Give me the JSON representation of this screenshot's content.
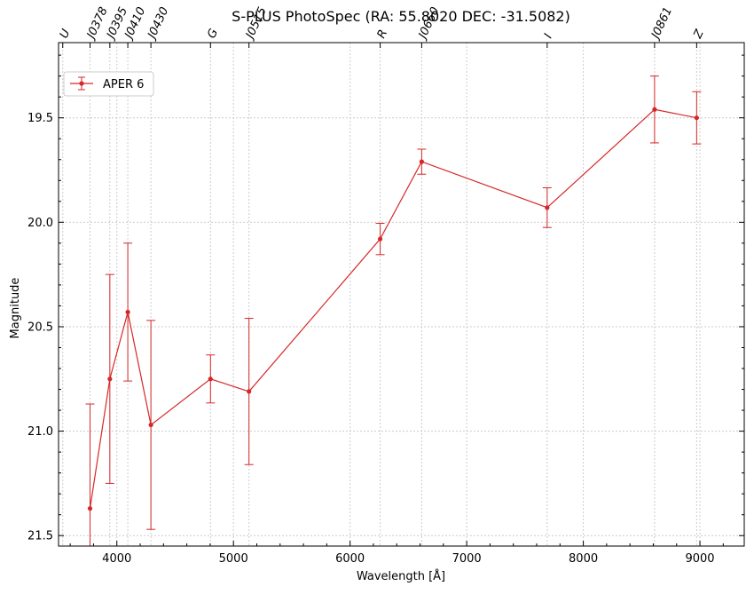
{
  "chart_data": {
    "type": "line",
    "title": "S-PLUS PhotoSpec (RA: 55.8020 DEC: -31.5082)",
    "xlabel": "Wavelength [Å]",
    "ylabel": "Magnitude",
    "xlim": [
      3500,
      9380
    ],
    "ylim": [
      21.55,
      19.14
    ],
    "y_inverted": true,
    "grid": true,
    "x_ticks": [
      4000,
      5000,
      6000,
      7000,
      8000,
      9000
    ],
    "y_ticks": [
      19.5,
      20.0,
      20.5,
      21.0,
      21.5
    ],
    "x_tick_labels": [
      "4000",
      "5000",
      "6000",
      "7000",
      "8000",
      "9000"
    ],
    "y_tick_labels": [
      "19.5",
      "20.0",
      "20.5",
      "21.0",
      "21.5"
    ],
    "legend_position": "top-left",
    "color": "#d62728",
    "series": [
      {
        "name": "APER 6",
        "points": [
          {
            "x": 3770,
            "y": 21.37,
            "err": 0.5
          },
          {
            "x": 3940,
            "y": 20.75,
            "err": 0.5
          },
          {
            "x": 4094,
            "y": 20.43,
            "err": 0.33
          },
          {
            "x": 4292,
            "y": 20.97,
            "err": 0.5
          },
          {
            "x": 4803,
            "y": 20.75,
            "err": 0.115
          },
          {
            "x": 5133,
            "y": 20.81,
            "err": 0.35
          },
          {
            "x": 6258,
            "y": 20.08,
            "err": 0.075
          },
          {
            "x": 6614,
            "y": 19.71,
            "err": 0.06
          },
          {
            "x": 7690,
            "y": 19.93,
            "err": 0.095
          },
          {
            "x": 8611,
            "y": 19.46,
            "err": 0.16
          },
          {
            "x": 8972,
            "y": 19.5,
            "err": 0.125
          }
        ]
      }
    ],
    "filters": [
      {
        "name": "U",
        "x": 3536
      },
      {
        "name": "J0378",
        "x": 3770
      },
      {
        "name": "J0395",
        "x": 3940
      },
      {
        "name": "J0410",
        "x": 4094
      },
      {
        "name": "J0430",
        "x": 4292
      },
      {
        "name": "G",
        "x": 4803
      },
      {
        "name": "J0515",
        "x": 5133
      },
      {
        "name": "R",
        "x": 6258
      },
      {
        "name": "J0660",
        "x": 6614
      },
      {
        "name": "I",
        "x": 7690
      },
      {
        "name": "J0861",
        "x": 8611
      },
      {
        "name": "Z",
        "x": 8972
      }
    ]
  }
}
